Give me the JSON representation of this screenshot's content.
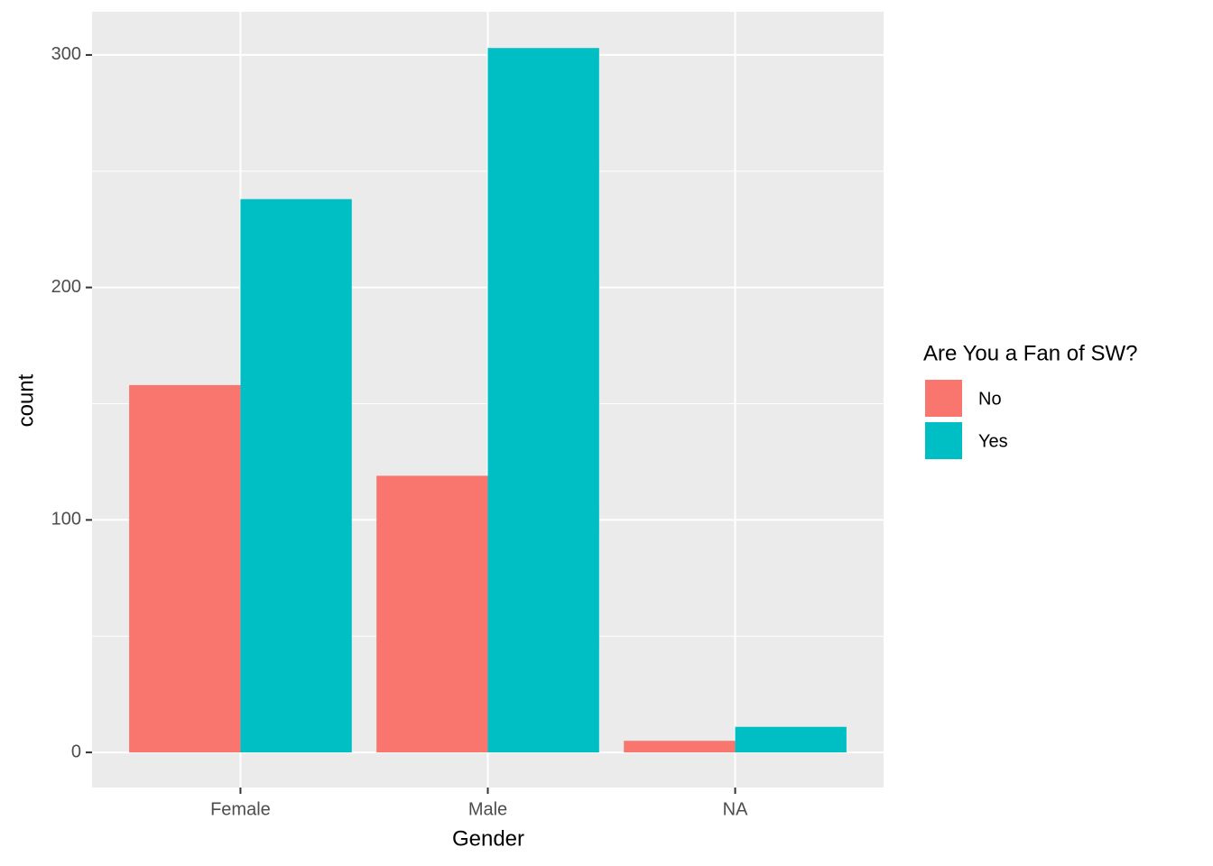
{
  "chart_data": {
    "type": "bar",
    "x_label": "Gender",
    "y_label": "count",
    "categories": [
      "Female",
      "Male",
      "NA"
    ],
    "series": [
      {
        "name": "No",
        "color": "#f8766d",
        "values": [
          158,
          119,
          5
        ]
      },
      {
        "name": "Yes",
        "color": "#00bfc4",
        "values": [
          238,
          303,
          11
        ]
      }
    ],
    "ylim": [
      -15.1,
      318.6
    ],
    "yticks": [
      0,
      100,
      200,
      300
    ],
    "minor_yticks": [
      50,
      150,
      250
    ],
    "grid": true,
    "legend_title": "Are You a Fan of SW?",
    "legend_position": "right"
  }
}
